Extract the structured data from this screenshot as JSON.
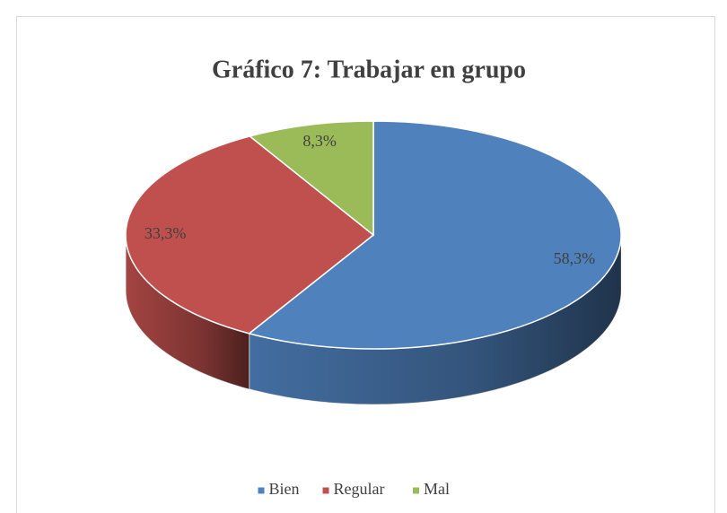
{
  "chart_data": {
    "type": "pie",
    "title": "Gráfico 7: Trabajar en grupo",
    "categories": [
      "Bien",
      "Regular",
      "Mal"
    ],
    "values": [
      58.3,
      33.3,
      8.3
    ],
    "value_labels": [
      "58,3%",
      "33,3%",
      "8,3%"
    ],
    "colors": [
      "#4f81bd",
      "#c0504d",
      "#9bbb59"
    ],
    "legend": "bottom"
  }
}
